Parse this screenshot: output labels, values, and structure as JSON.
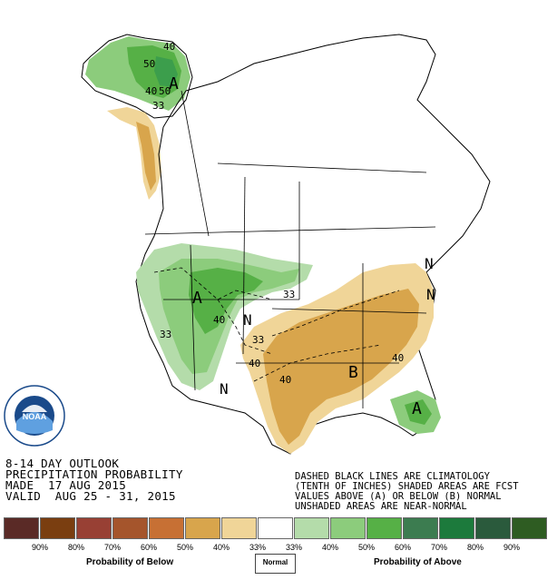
{
  "title": {
    "line1": "8-14 DAY OUTLOOK",
    "line2": "PRECIPITATION PROBABILITY",
    "line3": "MADE  17 AUG 2015",
    "line4": "VALID  AUG 25 - 31, 2015"
  },
  "notes": {
    "line1": "DASHED BLACK LINES ARE CLIMATOLOGY",
    "line2": "(TENTH OF INCHES) SHADED AREAS ARE FCST",
    "line3": "VALUES ABOVE (A) OR BELOW (B) NORMAL",
    "line4": "UNSHADED AREAS ARE NEAR-NORMAL"
  },
  "logo": {
    "text": "NOAA",
    "ring_text": "NATIONAL OCEANIC AND ATMOSPHERIC ADMINISTRATION",
    "ring_bottom": "U.S. DEPARTMENT OF COMMERCE"
  },
  "map_labels": {
    "alaska_A": "A",
    "alaska_40a": "40",
    "alaska_50a": "50",
    "alaska_40b": "40",
    "alaska_50b": "50",
    "alaska_33": "33",
    "west_A": "A",
    "west_40": "40",
    "west_33": "33",
    "north_33": "33",
    "central_N1": "N",
    "central_N2": "N",
    "central_33": "33",
    "central_40a": "40",
    "central_40b": "40",
    "east_N1": "N",
    "east_N2": "N",
    "east_B": "B",
    "east_40": "40",
    "florida_A": "A"
  },
  "legend": {
    "colors": [
      "#5a2a26",
      "#7a3e10",
      "#984034",
      "#a5552c",
      "#c77034",
      "#d8a54c",
      "#f0d598",
      "#ffffff",
      "#b4dcaa",
      "#8ccc7c",
      "#56b046",
      "#3c7c50",
      "#1c7a3c",
      "#2a5a3c",
      "#2e5c22"
    ],
    "labels": [
      "90%",
      "80%",
      "70%",
      "60%",
      "50%",
      "40%",
      "33%",
      "33%",
      "40%",
      "50%",
      "60%",
      "70%",
      "80%",
      "90%"
    ],
    "below_label": "Probability of Below",
    "normal_label": "Normal",
    "above_label": "Probability of Above"
  }
}
